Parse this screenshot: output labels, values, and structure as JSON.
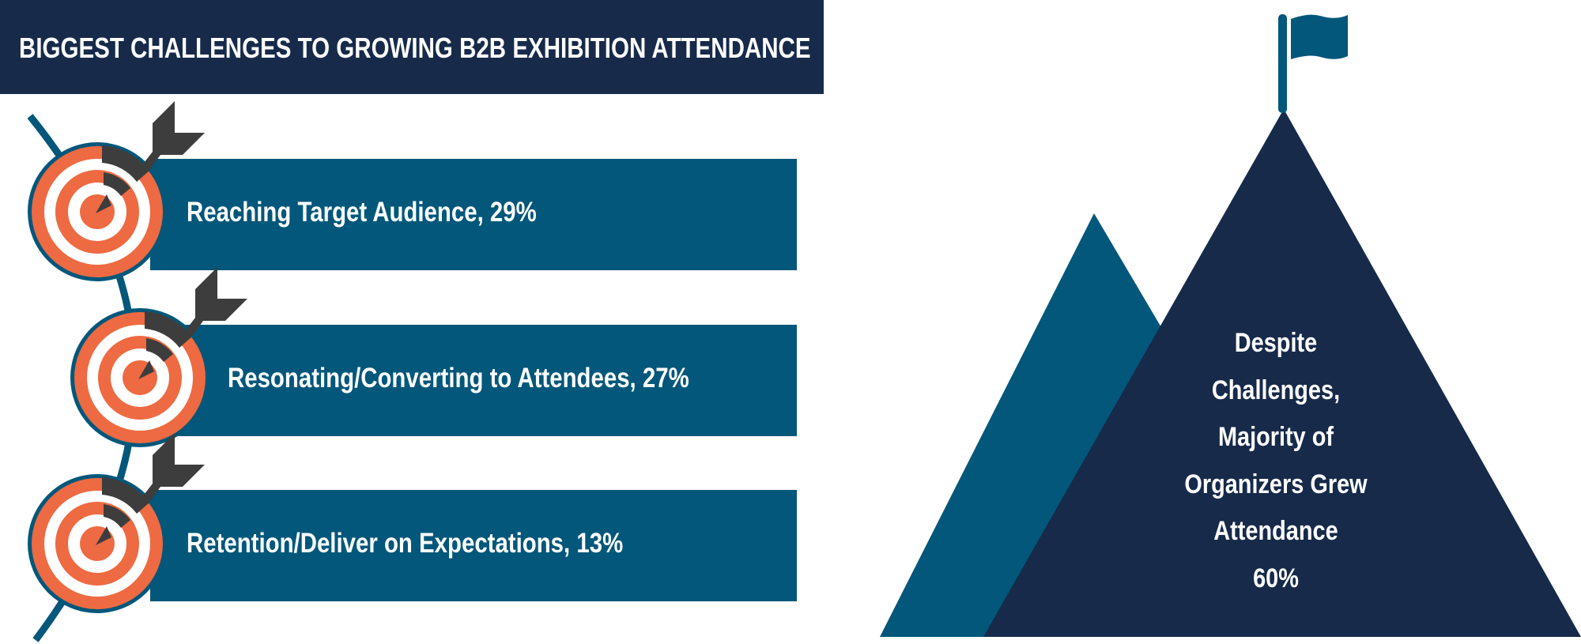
{
  "title": "BIGGEST CHALLENGES TO GROWING B2B EXHIBITION ATTENDANCE",
  "challenges": [
    {
      "label": "Reaching Target Audience, 29%",
      "percent": 29
    },
    {
      "label": "Resonating/Converting to Attendees, 27%",
      "percent": 27
    },
    {
      "label": "Retention/Deliver on Expectations, 13%",
      "percent": 13
    }
  ],
  "summary": {
    "lines": [
      "Despite",
      "Challenges,",
      "Majority of",
      "Organizers Grew",
      "Attendance",
      "60%"
    ],
    "percent": 60
  },
  "colors": {
    "navy": "#172a4a",
    "teal": "#02577a",
    "orange": "#ee6a42",
    "arrow": "#3d3d3d"
  },
  "icons": [
    "target-icon",
    "arrow-icon",
    "mountain-icon",
    "flag-icon"
  ]
}
